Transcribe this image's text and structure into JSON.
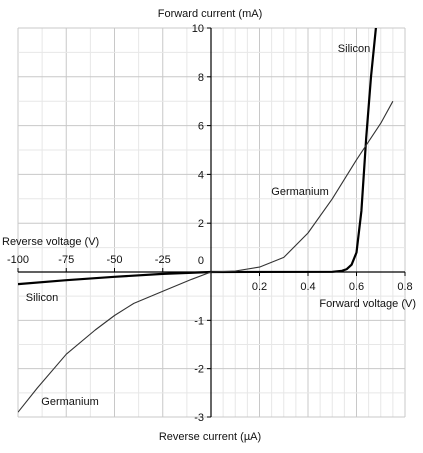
{
  "chart_data": {
    "type": "line",
    "title": "",
    "axes": {
      "y_top_label": "Forward current (mA)",
      "y_bottom_label": "Reverse current (µA)",
      "x_left_label": "Reverse voltage (V)",
      "x_right_label": "Forward voltage (V)"
    },
    "x_forward_ticks": [
      "0.2",
      "0.4",
      "0.6",
      "0.8"
    ],
    "x_reverse_ticks": [
      "-100",
      "-75",
      "-50",
      "-25"
    ],
    "y_forward_ticks": [
      "2",
      "4",
      "6",
      "8",
      "10"
    ],
    "y_reverse_ticks": [
      "-1",
      "-2",
      "-3"
    ],
    "origin_label": "0",
    "xlim_forward": [
      0,
      0.8
    ],
    "xlim_reverse": [
      -100,
      0
    ],
    "ylim_forward": [
      0,
      10
    ],
    "ylim_reverse": [
      -3,
      0
    ],
    "grid": true,
    "series": [
      {
        "name": "Silicon",
        "color": "#000000",
        "forward": {
          "x": [
            0,
            0.5,
            0.54,
            0.56,
            0.58,
            0.6,
            0.62,
            0.64,
            0.66,
            0.68,
            0.7
          ],
          "y": [
            0,
            0.01,
            0.05,
            0.12,
            0.3,
            0.8,
            2.5,
            5.5,
            8.0,
            10.0,
            12.5
          ]
        },
        "reverse": {
          "x": [
            -100,
            -75,
            -50,
            -25,
            0
          ],
          "y": [
            -0.25,
            -0.17,
            -0.1,
            -0.04,
            0
          ]
        }
      },
      {
        "name": "Germanium",
        "color": "#333333",
        "forward": {
          "x": [
            0,
            0.1,
            0.2,
            0.3,
            0.4,
            0.5,
            0.6,
            0.7,
            0.75
          ],
          "y": [
            0,
            0.04,
            0.2,
            0.6,
            1.6,
            3.0,
            4.6,
            6.1,
            7.0
          ]
        },
        "reverse": {
          "x": [
            -100,
            -90,
            -75,
            -60,
            -50,
            -40,
            -25,
            -10,
            0
          ],
          "y": [
            -2.9,
            -2.4,
            -1.7,
            -1.2,
            -0.9,
            -0.65,
            -0.4,
            -0.15,
            0
          ]
        }
      }
    ]
  }
}
